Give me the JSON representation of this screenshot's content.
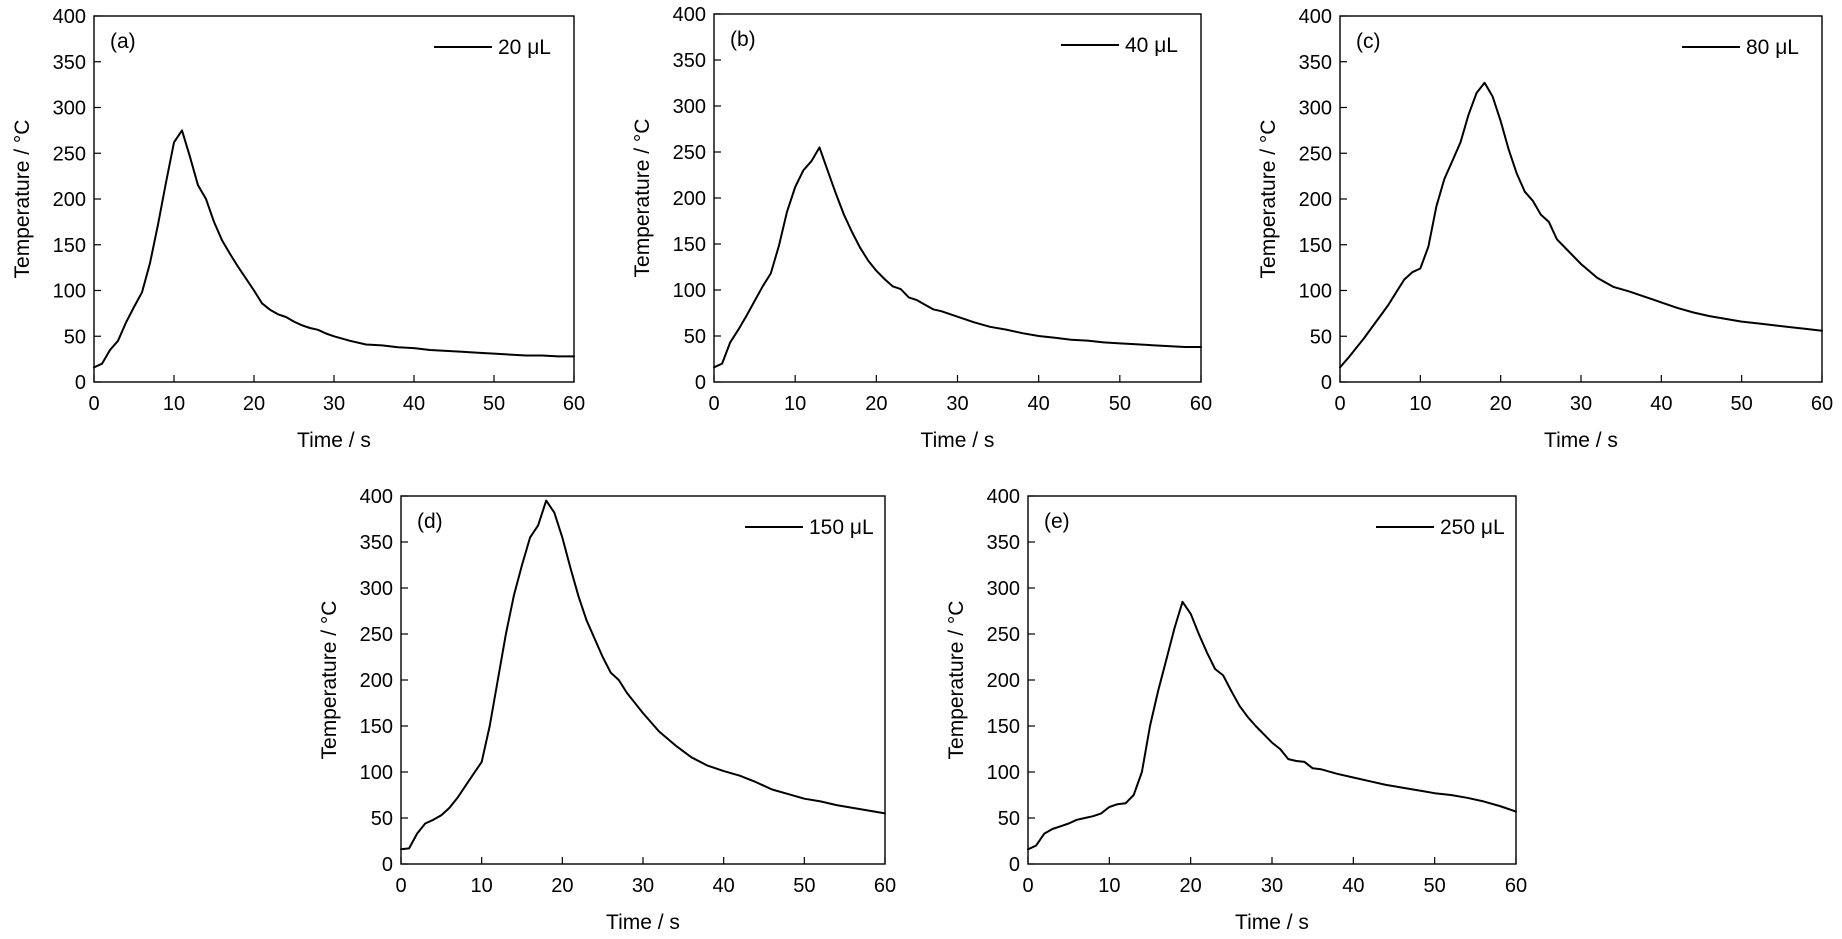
{
  "chart_data": [
    {
      "type": "line",
      "panel_label": "(a)",
      "xlabel": "Time / s",
      "ylabel": "Temperature / °C",
      "xlim": [
        0,
        60
      ],
      "ylim": [
        0,
        400
      ],
      "xticks": [
        0,
        10,
        20,
        30,
        40,
        50,
        60
      ],
      "yticks": [
        0,
        50,
        100,
        150,
        200,
        250,
        300,
        350,
        400
      ],
      "legend_position": "top-right",
      "grid": false,
      "series": [
        {
          "name": "20 μL",
          "x": [
            0,
            1,
            2,
            3,
            4,
            5,
            6,
            7,
            8,
            9,
            10,
            11,
            12,
            13,
            14,
            15,
            16,
            17,
            18,
            19,
            20,
            21,
            22,
            23,
            24,
            25,
            26,
            27,
            28,
            29,
            30,
            32,
            34,
            36,
            38,
            40,
            42,
            44,
            46,
            48,
            50,
            52,
            54,
            56,
            58,
            60
          ],
          "y": [
            16,
            20,
            35,
            45,
            65,
            82,
            98,
            130,
            172,
            218,
            262,
            275,
            246,
            215,
            200,
            175,
            155,
            140,
            126,
            113,
            100,
            86,
            79,
            74,
            71,
            66,
            62,
            59,
            57,
            53,
            50,
            45,
            41,
            40,
            38,
            37,
            35,
            34,
            33,
            32,
            31,
            30,
            29,
            29,
            28,
            28
          ]
        }
      ]
    },
    {
      "type": "line",
      "panel_label": "(b)",
      "xlabel": "Time / s",
      "ylabel": "Temperature / °C",
      "xlim": [
        0,
        60
      ],
      "ylim": [
        0,
        400
      ],
      "xticks": [
        0,
        10,
        20,
        30,
        40,
        50,
        60
      ],
      "yticks": [
        0,
        50,
        100,
        150,
        200,
        250,
        300,
        350,
        400
      ],
      "legend_position": "top-right",
      "grid": false,
      "series": [
        {
          "name": "40 μL",
          "x": [
            0,
            1,
            2,
            3,
            4,
            5,
            6,
            7,
            8,
            9,
            10,
            11,
            12,
            13,
            14,
            15,
            16,
            17,
            18,
            19,
            20,
            21,
            22,
            23,
            24,
            25,
            26,
            27,
            28,
            30,
            32,
            34,
            36,
            38,
            40,
            42,
            44,
            46,
            48,
            50,
            52,
            54,
            56,
            58,
            60
          ],
          "y": [
            16,
            20,
            43,
            57,
            72,
            88,
            104,
            118,
            148,
            185,
            212,
            230,
            240,
            255,
            230,
            205,
            182,
            163,
            146,
            132,
            121,
            112,
            104,
            101,
            92,
            89,
            84,
            79,
            77,
            71,
            65,
            60,
            57,
            53,
            50,
            48,
            46,
            45,
            43,
            42,
            41,
            40,
            39,
            38,
            38
          ]
        }
      ]
    },
    {
      "type": "line",
      "panel_label": "(c)",
      "xlabel": "Time / s",
      "ylabel": "Temperature / °C",
      "xlim": [
        0,
        60
      ],
      "ylim": [
        0,
        400
      ],
      "xticks": [
        0,
        10,
        20,
        30,
        40,
        50,
        60
      ],
      "yticks": [
        0,
        50,
        100,
        150,
        200,
        250,
        300,
        350,
        400
      ],
      "legend_position": "top-right",
      "grid": false,
      "series": [
        {
          "name": "80 μL",
          "x": [
            0,
            1,
            2,
            3,
            4,
            5,
            6,
            7,
            8,
            9,
            10,
            11,
            12,
            13,
            14,
            15,
            16,
            17,
            18,
            19,
            20,
            21,
            22,
            23,
            24,
            25,
            26,
            27,
            28,
            30,
            32,
            34,
            36,
            38,
            40,
            42,
            44,
            46,
            48,
            50,
            52,
            54,
            56,
            58,
            60
          ],
          "y": [
            16,
            26,
            37,
            48,
            60,
            72,
            84,
            98,
            112,
            120,
            124,
            148,
            192,
            222,
            242,
            262,
            292,
            316,
            327,
            312,
            285,
            254,
            228,
            208,
            198,
            183,
            175,
            156,
            147,
            129,
            114,
            104,
            99,
            93,
            87,
            81,
            76,
            72,
            69,
            66,
            64,
            62,
            60,
            58,
            56
          ]
        }
      ]
    },
    {
      "type": "line",
      "panel_label": "(d)",
      "xlabel": "Time / s",
      "ylabel": "Temperature / °C",
      "xlim": [
        0,
        60
      ],
      "ylim": [
        0,
        400
      ],
      "xticks": [
        0,
        10,
        20,
        30,
        40,
        50,
        60
      ],
      "yticks": [
        0,
        50,
        100,
        150,
        200,
        250,
        300,
        350,
        400
      ],
      "legend_position": "top-right",
      "grid": false,
      "series": [
        {
          "name": "150 μL",
          "x": [
            0,
            1,
            2,
            3,
            4,
            5,
            6,
            7,
            8,
            9,
            10,
            11,
            12,
            13,
            14,
            15,
            16,
            17,
            18,
            19,
            20,
            21,
            22,
            23,
            24,
            25,
            26,
            27,
            28,
            30,
            32,
            34,
            36,
            38,
            40,
            42,
            44,
            46,
            48,
            50,
            52,
            54,
            56,
            58,
            60
          ],
          "y": [
            16,
            17,
            33,
            44,
            48,
            53,
            61,
            72,
            85,
            98,
            111,
            150,
            200,
            250,
            292,
            325,
            355,
            368,
            395,
            382,
            355,
            322,
            291,
            265,
            245,
            225,
            208,
            200,
            186,
            164,
            144,
            129,
            116,
            107,
            101,
            96,
            89,
            81,
            76,
            71,
            68,
            64,
            61,
            58,
            55
          ]
        }
      ]
    },
    {
      "type": "line",
      "panel_label": "(e)",
      "xlabel": "Time / s",
      "ylabel": "Temperature / °C",
      "xlim": [
        0,
        60
      ],
      "ylim": [
        0,
        400
      ],
      "xticks": [
        0,
        10,
        20,
        30,
        40,
        50,
        60
      ],
      "yticks": [
        0,
        50,
        100,
        150,
        200,
        250,
        300,
        350,
        400
      ],
      "legend_position": "top-right",
      "grid": false,
      "series": [
        {
          "name": "250 μL",
          "x": [
            0,
            1,
            2,
            3,
            4,
            5,
            6,
            7,
            8,
            9,
            10,
            11,
            12,
            13,
            14,
            15,
            16,
            17,
            18,
            19,
            20,
            21,
            22,
            23,
            24,
            25,
            26,
            27,
            28,
            29,
            30,
            31,
            32,
            33,
            34,
            35,
            36,
            38,
            40,
            42,
            44,
            46,
            48,
            50,
            52,
            54,
            56,
            58,
            60
          ],
          "y": [
            16,
            20,
            33,
            38,
            41,
            44,
            48,
            50,
            52,
            55,
            62,
            65,
            66,
            75,
            100,
            150,
            188,
            222,
            256,
            285,
            272,
            250,
            230,
            212,
            205,
            188,
            172,
            160,
            150,
            141,
            132,
            125,
            114,
            112,
            111,
            104,
            103,
            98,
            94,
            90,
            86,
            83,
            80,
            77,
            75,
            72,
            68,
            63,
            57
          ]
        }
      ]
    }
  ]
}
